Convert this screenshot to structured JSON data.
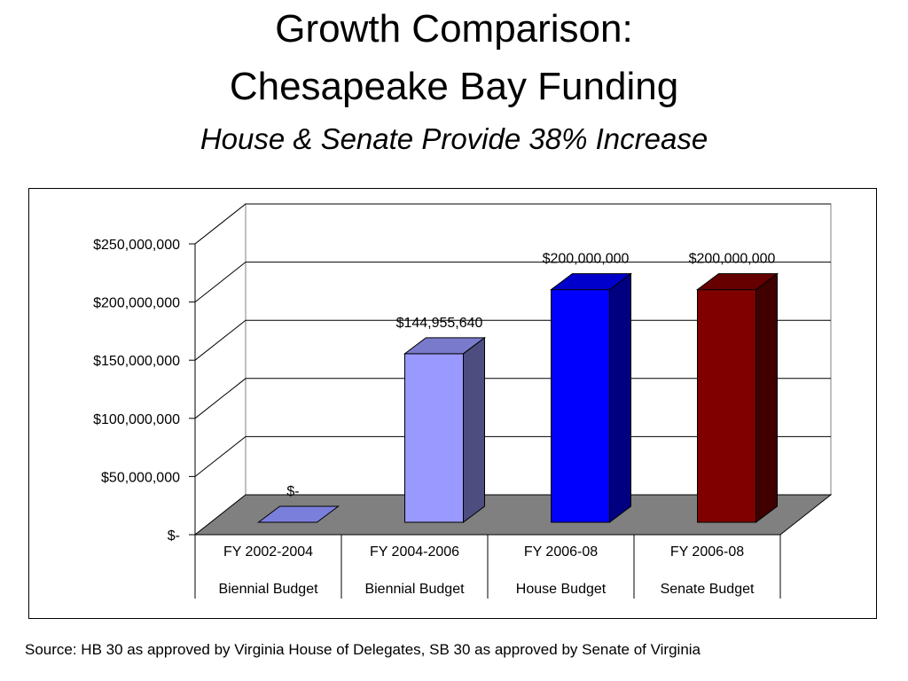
{
  "slide": {
    "title_line1": "Growth Comparison:",
    "title_line2": "Chesapeake Bay Funding",
    "subtitle": "House & Senate Provide 38% Increase",
    "source": "Source: HB 30 as approved by Virginia House of Delegates, SB 30 as approved by Senate of Virginia"
  },
  "chart_data": {
    "type": "bar",
    "title": "",
    "xlabel": "",
    "ylabel": "",
    "style": "3d-column",
    "ylim": [
      0,
      250000000
    ],
    "yticks": [
      {
        "value": 0,
        "label": "$-"
      },
      {
        "value": 50000000,
        "label": "$50,000,000"
      },
      {
        "value": 100000000,
        "label": "$100,000,000"
      },
      {
        "value": 150000000,
        "label": "$150,000,000"
      },
      {
        "value": 200000000,
        "label": "$200,000,000"
      },
      {
        "value": 250000000,
        "label": "$250,000,000"
      }
    ],
    "categories": [
      {
        "line1": "FY 2002-2004",
        "line2": "Biennial Budget"
      },
      {
        "line1": "FY 2004-2006",
        "line2": "Biennial Budget"
      },
      {
        "line1": "FY 2006-08",
        "line2": "House Budget"
      },
      {
        "line1": "FY 2006-08",
        "line2": "Senate Budget"
      }
    ],
    "values": [
      0,
      144955640,
      200000000,
      200000000
    ],
    "data_labels": [
      "$-",
      "$144,955,640",
      "$200,000,000",
      "$200,000,000"
    ],
    "colors": [
      "#7b7fdc",
      "#9999ff",
      "#0000ff",
      "#800000"
    ],
    "grid": true,
    "floor_color": "#808080",
    "legend": "none"
  }
}
